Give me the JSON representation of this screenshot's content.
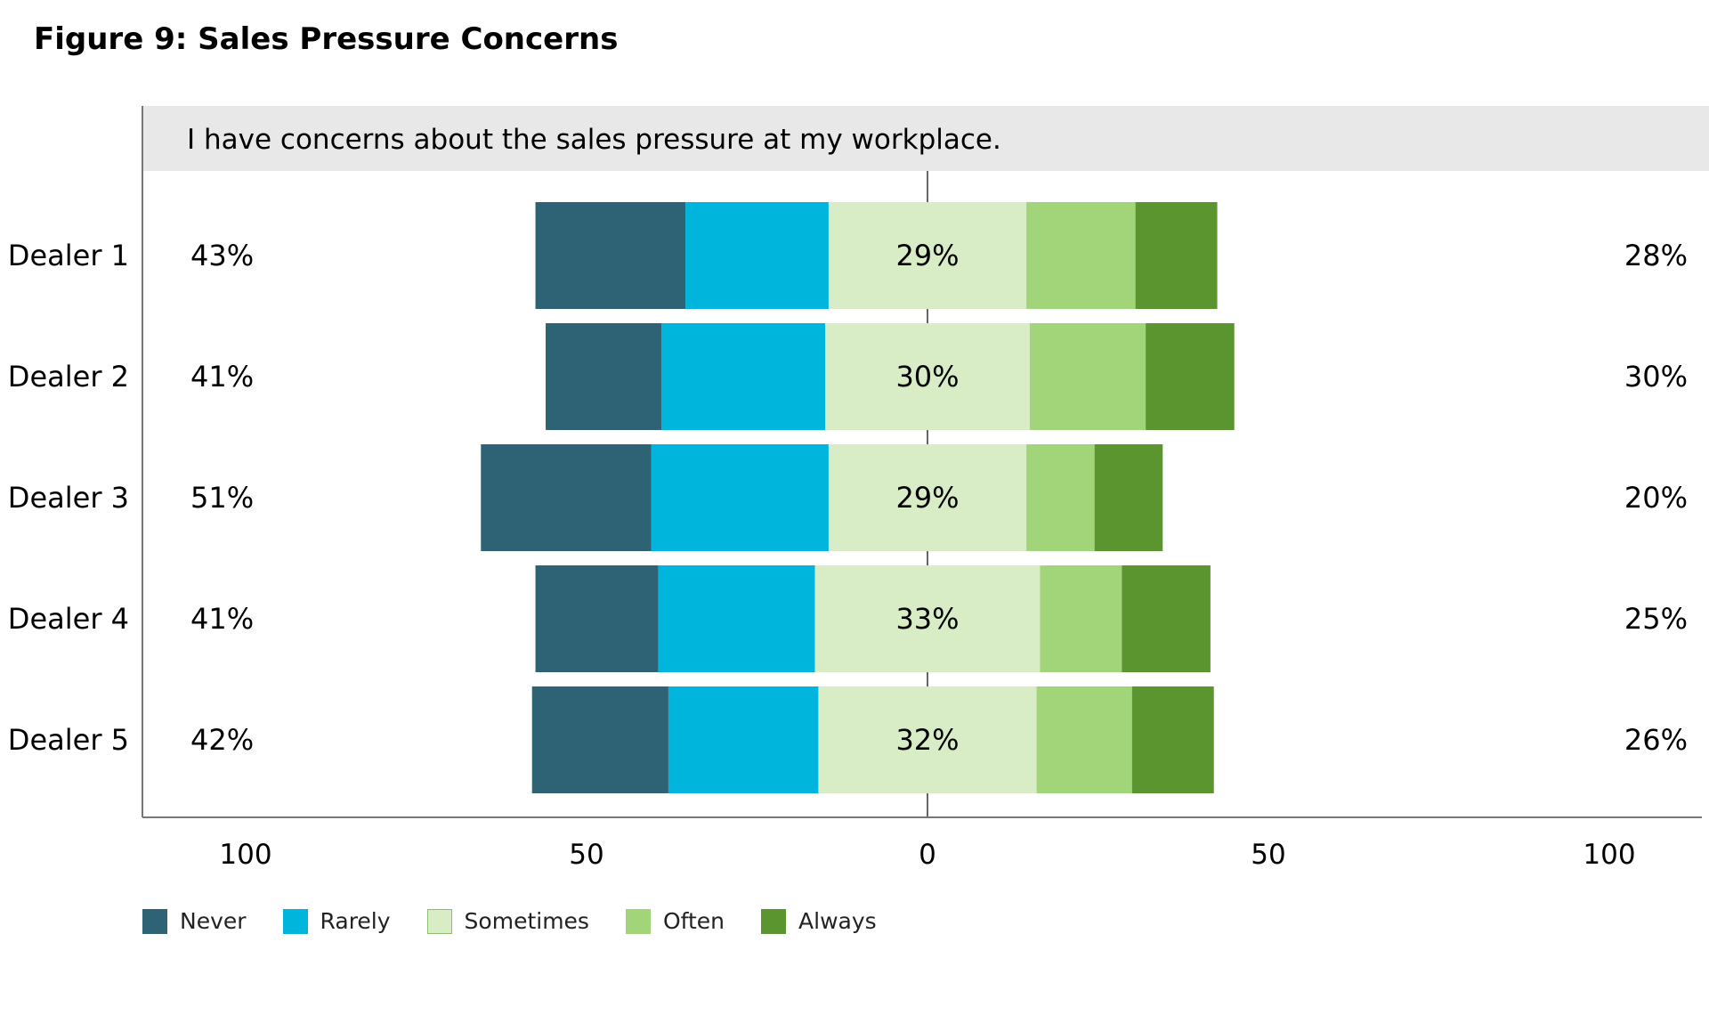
{
  "title": "Figure 9: Sales Pressure Concerns",
  "chart_data": {
    "type": "bar",
    "orientation": "horizontal",
    "stacking": "diverging",
    "question": "I have concerns about the sales pressure at my workplace.",
    "categories": [
      "Dealer 1",
      "Dealer 2",
      "Dealer 3",
      "Dealer 4",
      "Dealer 5"
    ],
    "series": [
      {
        "name": "Never",
        "color": "#2e6275",
        "values": [
          22,
          17,
          25,
          18,
          20
        ],
        "side": "negative"
      },
      {
        "name": "Rarely",
        "color": "#00b5dc",
        "values": [
          21,
          24,
          26,
          23,
          22
        ],
        "side": "negative"
      },
      {
        "name": "Sometimes",
        "color": "#d8ecc6",
        "values": [
          29,
          30,
          29,
          33,
          32
        ],
        "side": "center"
      },
      {
        "name": "Often",
        "color": "#a2d47a",
        "values": [
          16,
          17,
          10,
          12,
          14
        ],
        "side": "positive"
      },
      {
        "name": "Always",
        "color": "#5a9530",
        "values": [
          12,
          13,
          10,
          13,
          12
        ],
        "side": "positive"
      }
    ],
    "left_totals": [
      "43%",
      "41%",
      "51%",
      "41%",
      "42%"
    ],
    "center_labels": [
      "29%",
      "30%",
      "29%",
      "33%",
      "32%"
    ],
    "right_totals": [
      "28%",
      "30%",
      "20%",
      "25%",
      "26%"
    ],
    "xlim": [
      -100,
      100
    ],
    "x_ticks": [
      -100,
      -50,
      0,
      50,
      100
    ],
    "x_tick_labels": [
      "100",
      "50",
      "0",
      "50",
      "100"
    ],
    "grid": false,
    "legend_position": "bottom-left"
  },
  "legend": [
    {
      "label": "Never",
      "color": "#2e6275"
    },
    {
      "label": "Rarely",
      "color": "#00b5dc"
    },
    {
      "label": "Sometimes",
      "color": "#d8ecc6"
    },
    {
      "label": "Often",
      "color": "#a2d47a"
    },
    {
      "label": "Always",
      "color": "#5a9530"
    }
  ]
}
